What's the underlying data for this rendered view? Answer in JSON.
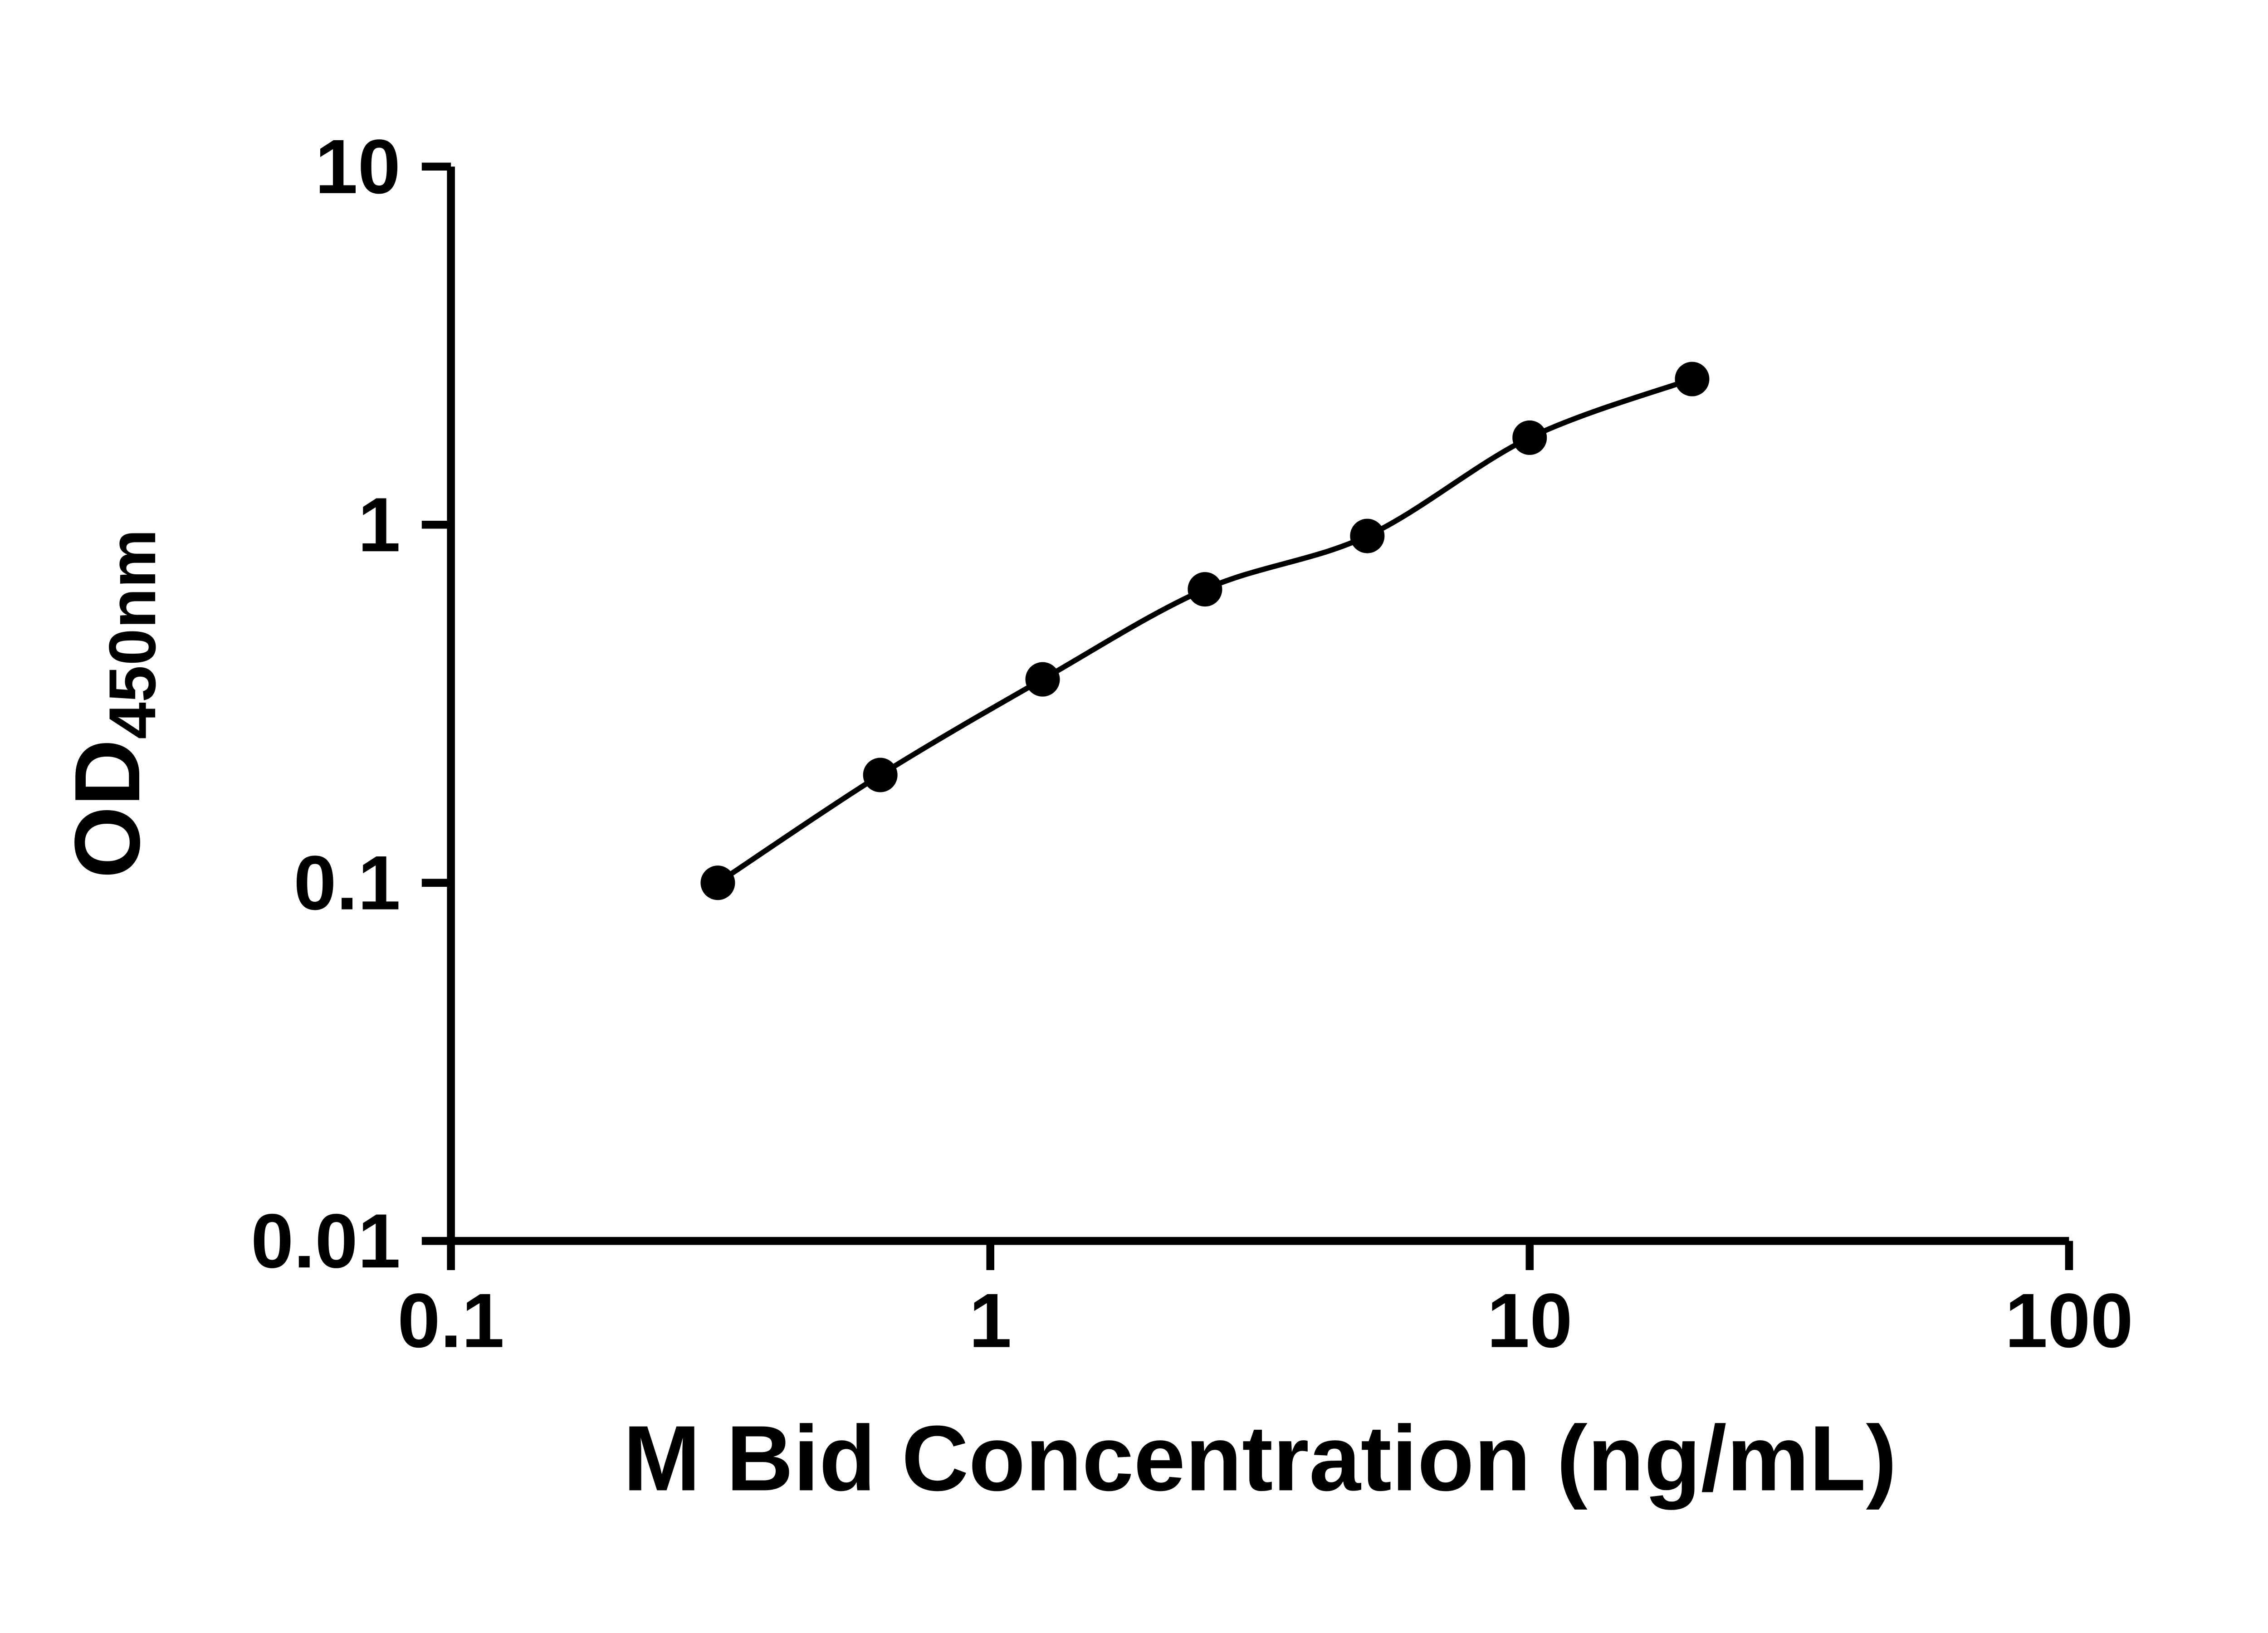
{
  "figure": {
    "background": "#ffffff"
  },
  "chart_data": {
    "type": "scatter",
    "title": "",
    "xlabel": "M Bid Concentration (ng/mL)",
    "ylabel": "OD450nm",
    "ylabel_base": "OD",
    "ylabel_sub": "450nm",
    "x_scale": "log10",
    "y_scale": "log10",
    "xlim": [
      0.1,
      100
    ],
    "ylim": [
      0.01,
      10
    ],
    "x_ticks": [
      0.1,
      1,
      10,
      100
    ],
    "x_tick_labels": [
      "0.1",
      "1",
      "10",
      "100"
    ],
    "y_ticks": [
      0.01,
      0.1,
      1,
      10
    ],
    "y_tick_labels": [
      "0.01",
      "0.1",
      "1",
      "10"
    ],
    "x": [
      0.3125,
      0.625,
      1.25,
      2.5,
      5,
      10,
      20
    ],
    "y": [
      0.1,
      0.2,
      0.37,
      0.66,
      0.93,
      1.75,
      2.55
    ],
    "grid": false,
    "legend_position": "none",
    "marker": "circle",
    "marker_color": "#000000",
    "line_color": "#000000",
    "axis_color": "#000000",
    "curve_style": "smooth"
  }
}
